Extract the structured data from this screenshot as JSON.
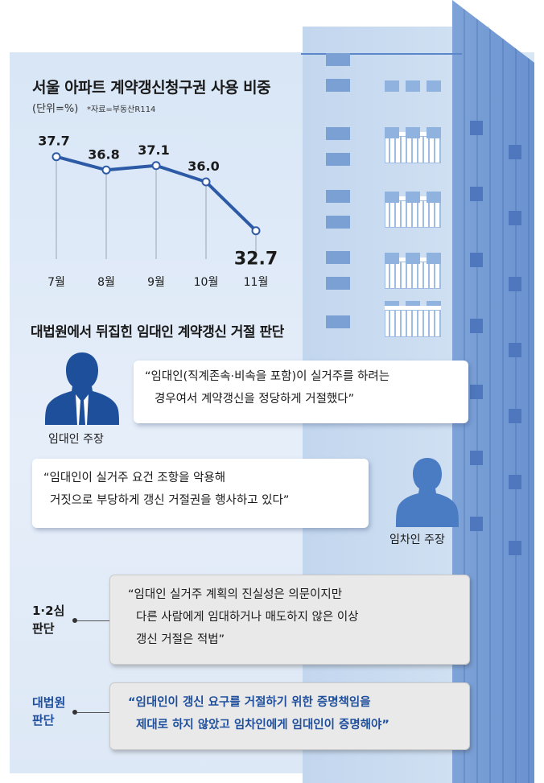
{
  "chart_data": {
    "type": "line",
    "title": "서울 아파트 계약갱신청구권 사용 비중",
    "unit": "(단위=%)",
    "source": "*자료=부동산R114",
    "categories": [
      "7월",
      "8월",
      "9월",
      "10월",
      "11월"
    ],
    "values": [
      37.7,
      36.8,
      37.1,
      36.0,
      32.7
    ],
    "value_labels": [
      "37.7",
      "36.8",
      "37.1",
      "36.0",
      "32.7"
    ],
    "ylim": [
      31.0,
      38.5
    ],
    "grid": false,
    "colors": {
      "line": "#2d5aa6",
      "marker_fill": "#ffffff",
      "drop_line": "#9aa5b3"
    }
  },
  "section": {
    "title": "대법원에서 뒤집힌 임대인 계약갱신 거절 판단"
  },
  "landlord": {
    "label": "임대인 주장",
    "quote": [
      "“임대인(직계존속·비속을 포함)이 실거주를 하려는",
      "경우여서 계약갱신을 정당하게 거절했다”"
    ]
  },
  "tenant": {
    "label": "임차인 주장",
    "quote": [
      "“임대인이 실거주 요건 조항을 악용해",
      "거짓으로 부당하게 갱신 거절권을 행사하고 있다”"
    ]
  },
  "lower_court": {
    "label": [
      "1·2심",
      "판단"
    ],
    "quote": [
      "“임대인 실거주 계획의 진실성은 의문이지만",
      "다른 사람에게 임대하거나 매도하지 않은 이상",
      "갱신 거절은 적법”"
    ]
  },
  "supreme_court": {
    "label": [
      "대법원",
      "판단"
    ],
    "quote": [
      "“임대인이 갱신 요구를 거절하기 위한 증명책임을",
      "제대로 하지 않았고 임차인에게 임대인이 증명해야”"
    ]
  },
  "colors": {
    "accent_blue": "#1f4f9c",
    "person_landlord": "#1d4f9b",
    "person_tenant": "#4a7cc4",
    "panel_bg": "#dde8f6",
    "building_side": "#6f96d1"
  }
}
